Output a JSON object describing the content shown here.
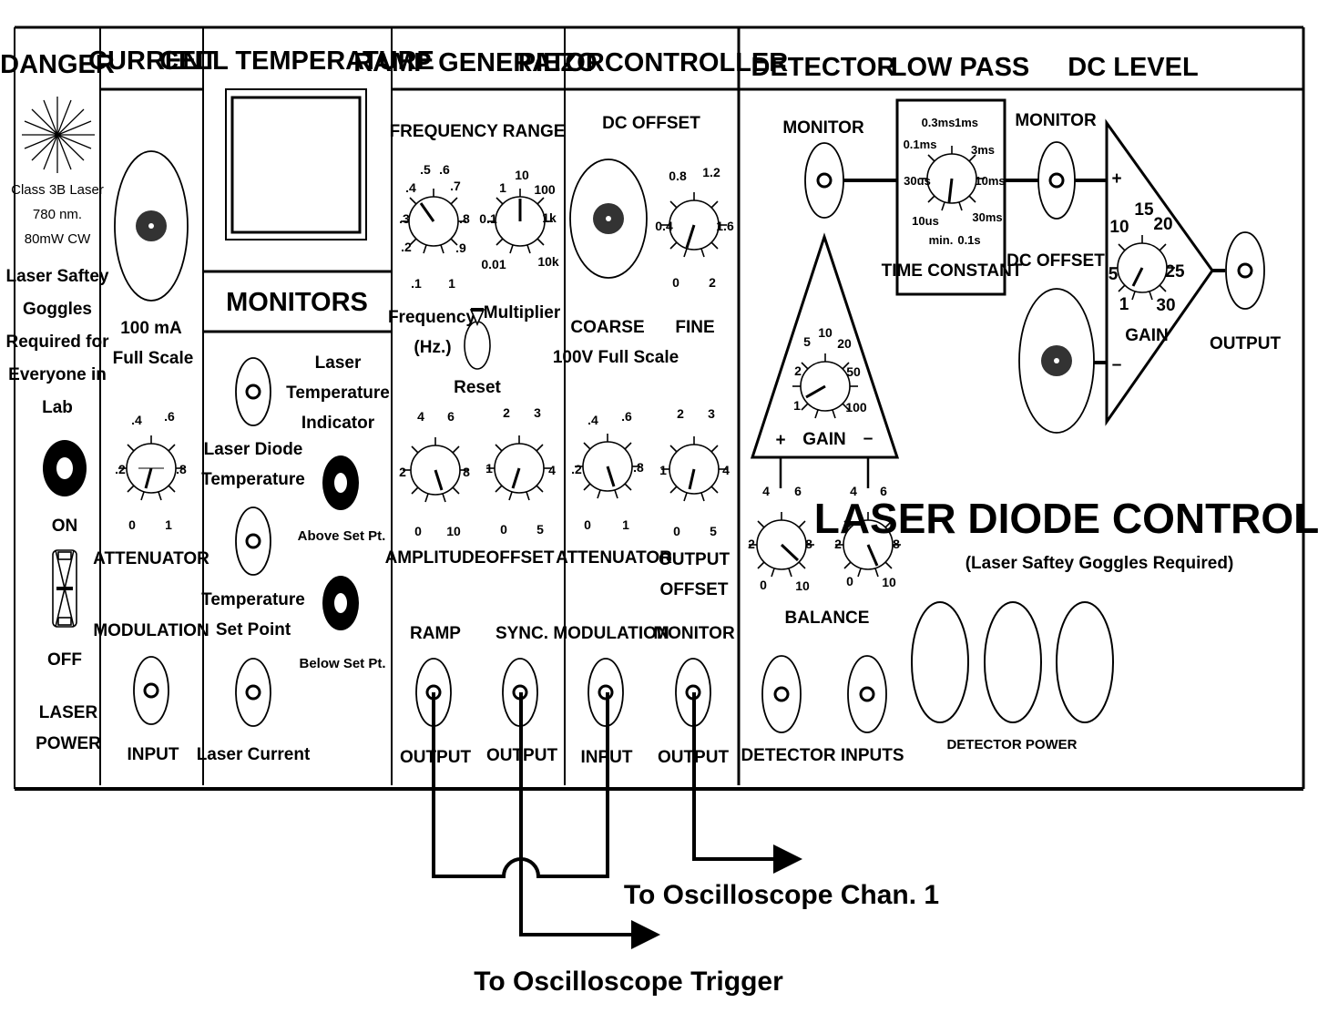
{
  "title": "LASER DIODE CONTROLLER",
  "subtitle": "(Laser Saftey Goggles Required)",
  "sections": {
    "danger": "DANGER",
    "current": "CURRENT",
    "cell_temperature": "CELL TEMPERATURE",
    "monitors": "MONITORS",
    "ramp_generator": "RAMP GENERATOR",
    "piezo_controller": "PIEZO CONTROLLER",
    "detector": "DETECTOR",
    "low_pass": "LOW PASS",
    "dc_level": "DC LEVEL"
  },
  "danger_panel": {
    "laser_lines": [
      "Class 3B Laser",
      "780 nm.",
      "80mW CW"
    ],
    "warning_lines": [
      "Laser Saftey",
      "Goggles",
      "Required for",
      "Everyone in",
      "Lab"
    ],
    "on": "ON",
    "off": "OFF",
    "power_lines": [
      "LASER",
      "POWER"
    ]
  },
  "current_panel": {
    "scale_lines": [
      "100 mA",
      "Full Scale"
    ],
    "attenuator": "ATTENUATOR",
    "attenuator_ticks": [
      ".4",
      ".6",
      ".2",
      ".8",
      "0",
      "1"
    ],
    "modulation": "MODULATION",
    "input": "INPUT"
  },
  "monitors_panel": {
    "laser_diode_temperature": [
      "Laser Diode",
      "Temperature"
    ],
    "temperature_set_point": [
      "Temperature",
      "Set Point"
    ],
    "laser_current": "Laser Current",
    "indicator": [
      "Laser",
      "Temperature",
      "Indicator"
    ],
    "above": "Above Set Pt.",
    "below": "Below Set Pt."
  },
  "ramp_panel": {
    "frequency_range": "FREQUENCY RANGE",
    "freq_ticks": [
      ".5",
      ".6",
      ".4",
      ".7",
      ".3",
      ".8",
      ".2",
      ".9",
      ".1",
      "1"
    ],
    "mult_ticks": [
      "10",
      "1",
      "100",
      "0.1",
      "1k",
      "0.01",
      "10k"
    ],
    "frequency": [
      "Frequency",
      "(Hz.)"
    ],
    "multiplier": "Multiplier",
    "reset": "Reset",
    "amp_ticks": [
      "4",
      "6",
      "2",
      "8",
      "0",
      "10"
    ],
    "off_ticks": [
      "2",
      "3",
      "1",
      "4",
      "0",
      "5"
    ],
    "amplitude": "AMPLITUDE",
    "offset": "OFFSET",
    "ramp": "RAMP",
    "sync": "SYNC.",
    "output": "OUTPUT"
  },
  "piezo_panel": {
    "dc_offset": "DC OFFSET",
    "fine_ticks": [
      "0.8",
      "1.2",
      "0.4",
      "1.6",
      "0",
      "2"
    ],
    "coarse": "COARSE",
    "fine": "FINE",
    "full_scale": "100V Full Scale",
    "att_ticks": [
      ".4",
      ".6",
      ".2",
      ".8",
      "0",
      "1"
    ],
    "out_ticks": [
      "2",
      "3",
      "1",
      "4",
      "0",
      "5"
    ],
    "attenuator": "ATTENUATOR",
    "output_offset": [
      "OUTPUT",
      "OFFSET"
    ],
    "modulation": "MODULATION",
    "monitor": "MONITOR",
    "input": "INPUT",
    "output": "OUTPUT"
  },
  "detector_panel": {
    "monitor": "MONITOR",
    "gain": "GAIN",
    "gain_ticks": [
      "5",
      "10",
      "20",
      "2",
      "50",
      "1",
      "100"
    ],
    "plus": "+",
    "minus": "–",
    "bal_ticks": [
      "4",
      "6",
      "2",
      "8",
      "0",
      "10"
    ],
    "balance": "BALANCE",
    "inputs": "DETECTOR INPUTS",
    "power": "DETECTOR POWER"
  },
  "lowpass_panel": {
    "tc_ticks": [
      "0.3ms",
      "1ms",
      "0.1ms",
      "3ms",
      "30us",
      "10ms",
      "10us",
      "30ms",
      "min.",
      "0.1s"
    ],
    "time_constant": "TIME CONSTANT"
  },
  "dclevel_panel": {
    "monitor": "MONITOR",
    "dc_offset": "DC OFFSET",
    "gain": "GAIN",
    "gain_ticks": [
      "15",
      "10",
      "20",
      "5",
      "25",
      "1",
      "30"
    ],
    "plus": "+",
    "minus": "–",
    "output": "OUTPUT"
  },
  "routing": {
    "chan1": "To Oscilloscope Chan. 1",
    "trigger": "To Oscilloscope Trigger"
  }
}
